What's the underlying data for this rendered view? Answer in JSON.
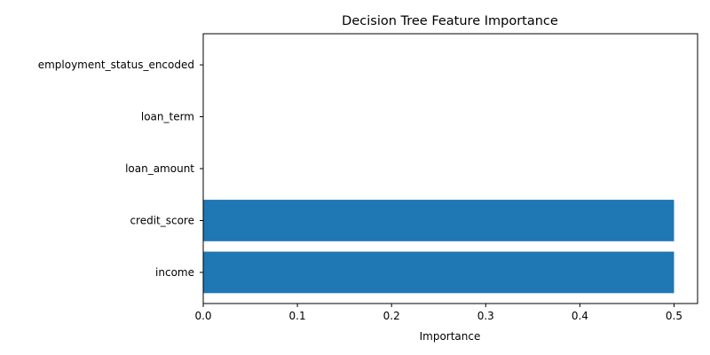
{
  "chart_data": {
    "type": "bar",
    "orientation": "horizontal",
    "title": "Decision Tree Feature Importance",
    "xlabel": "Importance",
    "ylabel": "",
    "categories": [
      "income",
      "credit_score",
      "loan_amount",
      "loan_term",
      "employment_status_encoded"
    ],
    "values": [
      0.5,
      0.5,
      0.0,
      0.0,
      0.0
    ],
    "xlim": [
      0,
      0.525
    ],
    "xticks": [
      "0.0",
      "0.1",
      "0.2",
      "0.3",
      "0.4",
      "0.5"
    ],
    "grid": false,
    "bar_color": "#1f77b4"
  }
}
